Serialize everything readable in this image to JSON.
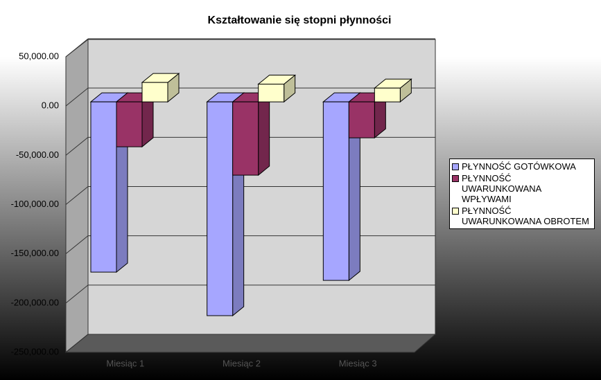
{
  "chart_data": {
    "type": "bar3d",
    "title": "Kształtowanie się stopni płynności",
    "categories": [
      "Miesiąc 1",
      "Miesiąc 2",
      "Miesiąc 3"
    ],
    "series": [
      {
        "name": "PŁYNNOŚĆ GOTÓWKOWA",
        "color": "#a6a6ff",
        "values": [
          -172800,
          -217000,
          -181200
        ]
      },
      {
        "name": "PŁYNNOŚĆ UWARUNKOWANA WPŁYWAMI",
        "color": "#993366",
        "values": [
          -45600,
          -74400,
          -36500
        ]
      },
      {
        "name": "PŁYNNOŚĆ UWARUNKOWANA OBROTEM",
        "color": "#ffffcc",
        "values": [
          19700,
          18000,
          14000
        ]
      }
    ],
    "ylim": [
      -250000,
      50000
    ],
    "yticks": [
      {
        "value": -250000,
        "label": "-250,000.00"
      },
      {
        "value": -200000,
        "label": "-200,000.00"
      },
      {
        "value": -150000,
        "label": "-150,000.00"
      },
      {
        "value": -100000,
        "label": "-100,000.00"
      },
      {
        "value": -50000,
        "label": "-50,000.00"
      },
      {
        "value": 0,
        "label": "0.00"
      },
      {
        "value": 50000,
        "label": "50,000.00"
      }
    ],
    "grid": true,
    "legend": "right"
  }
}
